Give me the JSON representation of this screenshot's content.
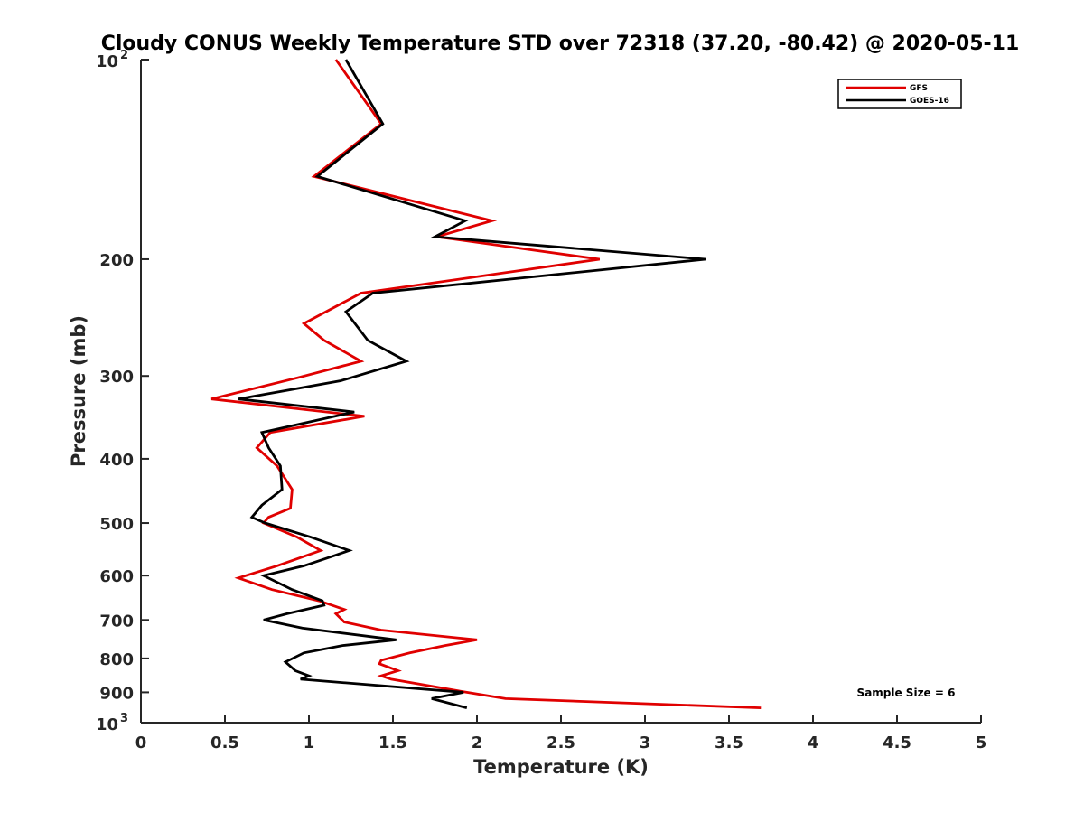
{
  "chart_data": {
    "type": "line",
    "title": "Cloudy CONUS Weekly Temperature STD over 72318 (37.20, -80.42) @ 2020-05-11",
    "xlabel": "Temperature (K)",
    "ylabel": "Pressure (mb)",
    "xlim": [
      0,
      5
    ],
    "ylim": [
      100,
      1000
    ],
    "y_scale": "log",
    "y_reversed": true,
    "x_ticks": [
      0,
      0.5,
      1,
      1.5,
      2,
      2.5,
      3,
      3.5,
      4,
      4.5,
      5
    ],
    "x_tick_labels": [
      "0",
      "0.5",
      "1",
      "1.5",
      "2",
      "2.5",
      "3",
      "3.5",
      "4",
      "4.5",
      "5"
    ],
    "y_ticks": [
      200,
      300,
      400,
      500,
      600,
      700,
      800,
      900
    ],
    "y_tick_labels": [
      "200",
      "300",
      "400",
      "500",
      "600",
      "700",
      "800",
      "900"
    ],
    "y_end_labels": [
      {
        "value": 100,
        "base": "10",
        "exp": "2"
      },
      {
        "value": 1000,
        "base": "10",
        "exp": "3"
      }
    ],
    "legend_position": "top-right",
    "annotation": "Sample Size = 6",
    "series": [
      {
        "name": "GFS",
        "color": "#e00000",
        "points": [
          {
            "x": 1.16,
            "p": 100
          },
          {
            "x": 1.43,
            "p": 125
          },
          {
            "x": 1.03,
            "p": 150
          },
          {
            "x": 2.09,
            "p": 175
          },
          {
            "x": 1.76,
            "p": 185
          },
          {
            "x": 2.73,
            "p": 200
          },
          {
            "x": 1.31,
            "p": 225
          },
          {
            "x": 0.97,
            "p": 250
          },
          {
            "x": 1.09,
            "p": 265
          },
          {
            "x": 1.31,
            "p": 285
          },
          {
            "x": 0.93,
            "p": 302
          },
          {
            "x": 0.42,
            "p": 325
          },
          {
            "x": 1.33,
            "p": 345
          },
          {
            "x": 0.77,
            "p": 365
          },
          {
            "x": 0.69,
            "p": 385
          },
          {
            "x": 0.81,
            "p": 410
          },
          {
            "x": 0.9,
            "p": 445
          },
          {
            "x": 0.89,
            "p": 475
          },
          {
            "x": 0.76,
            "p": 490
          },
          {
            "x": 0.73,
            "p": 500
          },
          {
            "x": 0.93,
            "p": 525
          },
          {
            "x": 1.07,
            "p": 550
          },
          {
            "x": 0.81,
            "p": 580
          },
          {
            "x": 0.58,
            "p": 605
          },
          {
            "x": 0.78,
            "p": 630
          },
          {
            "x": 1.06,
            "p": 655
          },
          {
            "x": 1.21,
            "p": 675
          },
          {
            "x": 1.16,
            "p": 685
          },
          {
            "x": 1.21,
            "p": 705
          },
          {
            "x": 1.43,
            "p": 725
          },
          {
            "x": 2.0,
            "p": 750
          },
          {
            "x": 1.81,
            "p": 765
          },
          {
            "x": 1.6,
            "p": 785
          },
          {
            "x": 1.43,
            "p": 805
          },
          {
            "x": 1.42,
            "p": 815
          },
          {
            "x": 1.53,
            "p": 835
          },
          {
            "x": 1.43,
            "p": 850
          },
          {
            "x": 1.49,
            "p": 860
          },
          {
            "x": 1.94,
            "p": 900
          },
          {
            "x": 2.17,
            "p": 920
          },
          {
            "x": 3.69,
            "p": 950
          }
        ]
      },
      {
        "name": "GOES-16",
        "color": "#000000",
        "points": [
          {
            "x": 1.22,
            "p": 100
          },
          {
            "x": 1.44,
            "p": 125
          },
          {
            "x": 1.05,
            "p": 150
          },
          {
            "x": 1.93,
            "p": 175
          },
          {
            "x": 1.75,
            "p": 185
          },
          {
            "x": 3.36,
            "p": 200
          },
          {
            "x": 1.38,
            "p": 225
          },
          {
            "x": 1.22,
            "p": 240
          },
          {
            "x": 1.35,
            "p": 265
          },
          {
            "x": 1.58,
            "p": 285
          },
          {
            "x": 1.19,
            "p": 305
          },
          {
            "x": 0.58,
            "p": 325
          },
          {
            "x": 1.27,
            "p": 340
          },
          {
            "x": 0.72,
            "p": 365
          },
          {
            "x": 0.76,
            "p": 385
          },
          {
            "x": 0.83,
            "p": 410
          },
          {
            "x": 0.84,
            "p": 445
          },
          {
            "x": 0.72,
            "p": 470
          },
          {
            "x": 0.66,
            "p": 490
          },
          {
            "x": 0.74,
            "p": 500
          },
          {
            "x": 1.01,
            "p": 525
          },
          {
            "x": 1.24,
            "p": 550
          },
          {
            "x": 1.15,
            "p": 560
          },
          {
            "x": 0.97,
            "p": 580
          },
          {
            "x": 0.73,
            "p": 600
          },
          {
            "x": 0.9,
            "p": 630
          },
          {
            "x": 1.08,
            "p": 655
          },
          {
            "x": 1.09,
            "p": 665
          },
          {
            "x": 0.87,
            "p": 685
          },
          {
            "x": 0.73,
            "p": 700
          },
          {
            "x": 0.96,
            "p": 720
          },
          {
            "x": 1.52,
            "p": 750
          },
          {
            "x": 1.2,
            "p": 765
          },
          {
            "x": 0.97,
            "p": 785
          },
          {
            "x": 0.86,
            "p": 810
          },
          {
            "x": 0.92,
            "p": 835
          },
          {
            "x": 1.0,
            "p": 850
          },
          {
            "x": 0.95,
            "p": 860
          },
          {
            "x": 1.92,
            "p": 900
          },
          {
            "x": 1.73,
            "p": 920
          },
          {
            "x": 1.94,
            "p": 950
          }
        ]
      }
    ]
  }
}
